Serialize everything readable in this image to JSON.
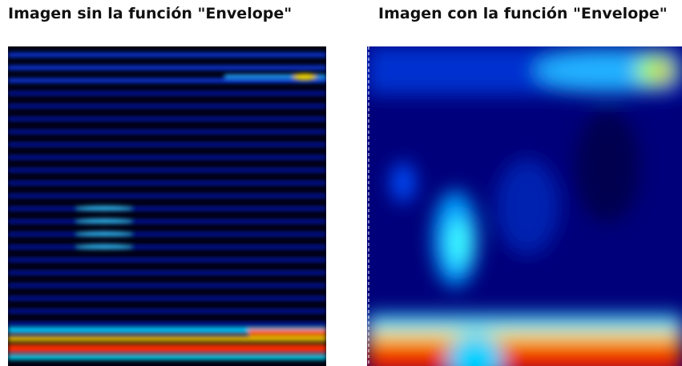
{
  "left_panel": {
    "title": "Imagen sin la función \"Envelope\""
  },
  "right_panel": {
    "title": "Imagen con la función \"Envelope\""
  }
}
